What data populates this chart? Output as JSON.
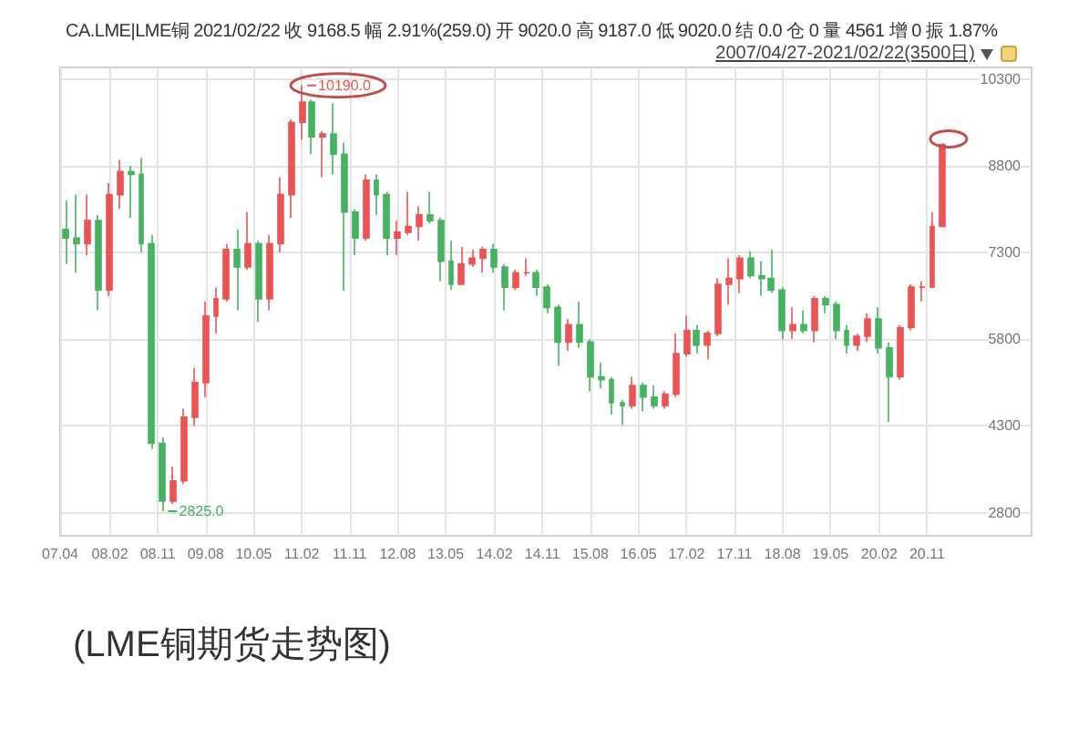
{
  "chart_data": {
    "type": "candlestick",
    "x": [
      "2007-06-01",
      "2007-08-01",
      "2007-10-01",
      "2007-12-01",
      "2008-02-01",
      "2008-04-01",
      "2008-06-01",
      "2008-08-01",
      "2008-10-01",
      "2008-12-01",
      "2009-02-01",
      "2009-04-01",
      "2009-06-01",
      "2009-08-01",
      "2009-10-01",
      "2009-12-01",
      "2010-02-01",
      "2010-04-01",
      "2010-06-01",
      "2010-08-01",
      "2010-10-01",
      "2010-12-01",
      "2011-02-01",
      "2011-04-01",
      "2011-06-01",
      "2011-08-01",
      "2011-10-01",
      "2011-12-01",
      "2012-02-01",
      "2012-04-01",
      "2012-06-01",
      "2012-08-01",
      "2012-10-01",
      "2012-12-01",
      "2013-02-01",
      "2013-04-01",
      "2013-06-01",
      "2013-08-01",
      "2013-10-01",
      "2013-12-01",
      "2014-02-01",
      "2014-04-01",
      "2014-06-01",
      "2014-08-01",
      "2014-10-01",
      "2014-12-01",
      "2015-02-01",
      "2015-04-01",
      "2015-06-01",
      "2015-08-01",
      "2015-10-01",
      "2015-12-01",
      "2016-02-01",
      "2016-04-01",
      "2016-06-01",
      "2016-08-01",
      "2016-10-01",
      "2016-12-01",
      "2017-02-01",
      "2017-04-01",
      "2017-06-01",
      "2017-08-01",
      "2017-10-01",
      "2017-12-01",
      "2018-02-01",
      "2018-04-01",
      "2018-06-01",
      "2018-08-01",
      "2018-10-01",
      "2018-12-01",
      "2019-02-01",
      "2019-04-01",
      "2019-06-01",
      "2019-08-01",
      "2019-10-01",
      "2019-12-01",
      "2020-02-01",
      "2020-04-01",
      "2020-06-01",
      "2020-08-01",
      "2020-10-01",
      "2020-12-01",
      "2021-02-01"
    ],
    "ohlc": [
      [
        7700,
        8200,
        7100,
        7550
      ],
      [
        7550,
        8300,
        6950,
        7450
      ],
      [
        7450,
        8300,
        7250,
        7850
      ],
      [
        7850,
        7950,
        6300,
        6650
      ],
      [
        6650,
        8500,
        6550,
        8300
      ],
      [
        8300,
        8900,
        8050,
        8700
      ],
      [
        8700,
        8800,
        7900,
        8650
      ],
      [
        8650,
        8940,
        7300,
        7450
      ],
      [
        7450,
        7600,
        3900,
        4000
      ],
      [
        4000,
        4100,
        2825,
        3000
      ],
      [
        3000,
        3600,
        2950,
        3350
      ],
      [
        3350,
        4600,
        3300,
        4450
      ],
      [
        4450,
        5300,
        4300,
        5050
      ],
      [
        5050,
        6450,
        4800,
        6200
      ],
      [
        6200,
        6700,
        5900,
        6500
      ],
      [
        6500,
        7450,
        6450,
        7350
      ],
      [
        7350,
        7700,
        6300,
        7050
      ],
      [
        7050,
        8000,
        7000,
        7450
      ],
      [
        7450,
        7500,
        6100,
        6500
      ],
      [
        6500,
        7600,
        6300,
        7450
      ],
      [
        7450,
        8600,
        7300,
        8300
      ],
      [
        8300,
        9600,
        7900,
        9550
      ],
      [
        9550,
        10190,
        9250,
        9900
      ],
      [
        9900,
        9950,
        9000,
        9300
      ],
      [
        9300,
        9400,
        8600,
        9350
      ],
      [
        9350,
        9880,
        8650,
        9000
      ],
      [
        9000,
        9200,
        6640,
        8000
      ],
      [
        8000,
        8050,
        7250,
        7550
      ],
      [
        7550,
        8650,
        7500,
        8550
      ],
      [
        8550,
        8650,
        7950,
        8300
      ],
      [
        8300,
        8350,
        7250,
        7550
      ],
      [
        7550,
        7850,
        7250,
        7650
      ],
      [
        7650,
        8350,
        7600,
        7750
      ],
      [
        7750,
        8100,
        7500,
        7950
      ],
      [
        7950,
        8350,
        7800,
        7850
      ],
      [
        7850,
        7900,
        6800,
        7150
      ],
      [
        7150,
        7500,
        6650,
        6750
      ],
      [
        6750,
        7400,
        6750,
        7100
      ],
      [
        7100,
        7350,
        7050,
        7200
      ],
      [
        7200,
        7400,
        6950,
        7350
      ],
      [
        7350,
        7450,
        6950,
        7050
      ],
      [
        7050,
        7100,
        6300,
        6700
      ],
      [
        6700,
        7000,
        6650,
        6950
      ],
      [
        6950,
        7200,
        6900,
        6950
      ],
      [
        6950,
        7000,
        6550,
        6700
      ],
      [
        6700,
        6750,
        6250,
        6350
      ],
      [
        6350,
        6400,
        5340,
        5750
      ],
      [
        5750,
        6150,
        5600,
        6050
      ],
      [
        6050,
        6450,
        5650,
        5750
      ],
      [
        5750,
        5800,
        4900,
        5150
      ],
      [
        5150,
        5400,
        4950,
        5100
      ],
      [
        5100,
        5150,
        4500,
        4700
      ],
      [
        4700,
        4750,
        4320,
        4650
      ],
      [
        4650,
        5150,
        4600,
        5000
      ],
      [
        5000,
        5050,
        4550,
        4800
      ],
      [
        4800,
        5000,
        4600,
        4650
      ],
      [
        4650,
        4900,
        4600,
        4850
      ],
      [
        4850,
        5900,
        4800,
        5550
      ],
      [
        5550,
        6200,
        5500,
        5950
      ],
      [
        5950,
        6050,
        5550,
        5700
      ],
      [
        5700,
        5950,
        5450,
        5900
      ],
      [
        5900,
        6850,
        5850,
        6750
      ],
      [
        6750,
        7200,
        6400,
        6850
      ],
      [
        6850,
        7250,
        6600,
        7200
      ],
      [
        7200,
        7320,
        6850,
        6900
      ],
      [
        6900,
        7150,
        6550,
        6850
      ],
      [
        6850,
        7350,
        6600,
        6650
      ],
      [
        6650,
        6700,
        5800,
        5950
      ],
      [
        5950,
        6350,
        5800,
        6050
      ],
      [
        6050,
        6300,
        5900,
        5950
      ],
      [
        5950,
        6550,
        5750,
        6500
      ],
      [
        6500,
        6550,
        6250,
        6400
      ],
      [
        6400,
        6450,
        5800,
        5950
      ],
      [
        5950,
        6050,
        5550,
        5700
      ],
      [
        5700,
        5900,
        5600,
        5850
      ],
      [
        5850,
        6250,
        5750,
        6150
      ],
      [
        6150,
        6350,
        5550,
        5650
      ],
      [
        5650,
        5750,
        4370,
        5150
      ],
      [
        5150,
        6050,
        5100,
        6000
      ],
      [
        6000,
        6750,
        5950,
        6700
      ],
      [
        6700,
        6800,
        6450,
        6700
      ],
      [
        6700,
        8000,
        6700,
        7750
      ],
      [
        7750,
        9187,
        7750,
        9168.5
      ]
    ],
    "xlim": [
      "2007-04-27",
      "2022-06-20"
    ],
    "xticks": [
      {
        "value": "2007-04-27",
        "label": "07.04"
      },
      {
        "value": "2008-02-04",
        "label": "08.02"
      },
      {
        "value": "2008-11-03",
        "label": "08.11"
      },
      {
        "value": "2009-08-03",
        "label": "09.08"
      },
      {
        "value": "2010-05-04",
        "label": "10.05"
      },
      {
        "value": "2011-02-01",
        "label": "11.02"
      },
      {
        "value": "2011-11-01",
        "label": "11.11"
      },
      {
        "value": "2012-08-01",
        "label": "12.08"
      },
      {
        "value": "2013-05-01",
        "label": "13.05"
      },
      {
        "value": "2014-02-03",
        "label": "14.02"
      },
      {
        "value": "2014-11-03",
        "label": "14.11"
      },
      {
        "value": "2015-08-03",
        "label": "15.08"
      },
      {
        "value": "2016-05-03",
        "label": "16.05"
      },
      {
        "value": "2017-02-01",
        "label": "17.02"
      },
      {
        "value": "2017-11-01",
        "label": "17.11"
      },
      {
        "value": "2018-08-01",
        "label": "18.08"
      },
      {
        "value": "2019-05-01",
        "label": "19.05"
      },
      {
        "value": "2020-02-03",
        "label": "20.02"
      },
      {
        "value": "2020-11-02",
        "label": "20.11"
      }
    ],
    "ylim": [
      2400,
      10500
    ],
    "yticks": [
      2800,
      4300,
      5800,
      7300,
      8800,
      10300
    ],
    "grid": true,
    "annotations": [
      "CA.LME|LME铜 2021/02/22 收 9168.5 幅 2.91%(259.0) 开 9020.0 高 9187.0 低 9020.0 结 0.0 仓 0 量 4561 增 0 振 1.87%",
      "2007/04/27-2021/02/22(3500日)",
      {
        "text": "10190.0",
        "x": "2011-02-01",
        "y": 10190
      },
      {
        "text": "2825.0",
        "x": "2008-12-01",
        "y": 2825
      },
      "(LME铜期货走势图)"
    ]
  }
}
